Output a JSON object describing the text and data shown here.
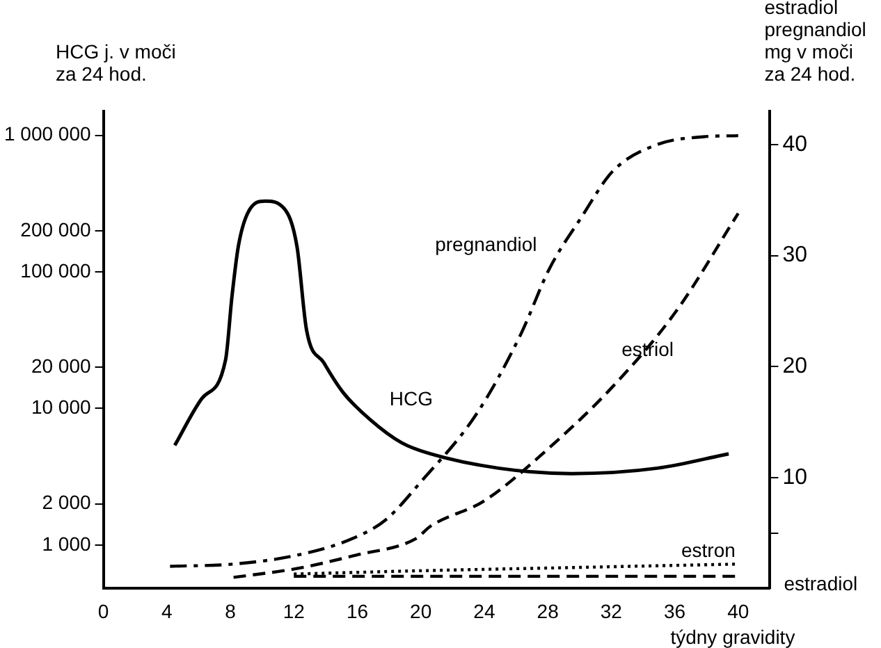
{
  "chart_data": {
    "type": "line",
    "xlabel": "týdny gravidity",
    "ylabel": "HCG j. v moči\nza 24 hod.",
    "y2label": "estradiol\npregnandiol\nmg v moči\nza 24 hod.",
    "xlim": [
      0,
      42
    ],
    "xticks": [
      0,
      4,
      8,
      12,
      16,
      20,
      24,
      28,
      32,
      36,
      40
    ],
    "log": "y",
    "ylim": [
      480,
      1500000
    ],
    "yticks": [
      {
        "value": 1000,
        "label": "1 000"
      },
      {
        "value": 2000,
        "label": "2 000"
      },
      {
        "value": 10000,
        "label": "10 000"
      },
      {
        "value": 20000,
        "label": "20 000"
      },
      {
        "value": 100000,
        "label": "100 000"
      },
      {
        "value": 200000,
        "label": "200 000"
      },
      {
        "value": 1000000,
        "label": "1 000 000"
      }
    ],
    "y2lim": [
      0,
      43
    ],
    "y2ticks": [
      {
        "value": 5,
        "label": null
      },
      10,
      20,
      30,
      40
    ],
    "grid": false,
    "legend": false,
    "marker": "none",
    "series": [
      {
        "name": "HCG",
        "color": "#000000",
        "line_style": "solid",
        "x": [
          4.5,
          6.2,
          7.7,
          8.1,
          8.5,
          9.1,
          10.2,
          11.4,
          12.2,
          12.8,
          13.9,
          15.1,
          16.8,
          18.8,
          20.6,
          24.9,
          29.5,
          34.9,
          39.4
        ],
        "values": [
          5370,
          11800,
          22700,
          65700,
          153000,
          270000,
          330000,
          290000,
          153000,
          37600,
          21500,
          13100,
          8300,
          5600,
          4650,
          3650,
          3330,
          3650,
          4650
        ]
      },
      {
        "name": "pregnandiol",
        "color": "#000000",
        "axis": "y2",
        "line_style": "dashdot",
        "x": [
          4.2,
          8.2,
          12.2,
          15.7,
          17.8,
          20,
          23.5,
          26.3,
          28.1,
          30.1,
          32.1,
          34.9,
          37.8,
          40
        ],
        "values": [
          2.0,
          2.2,
          3.0,
          4.5,
          6.2,
          9.6,
          15.7,
          22.9,
          28.8,
          33.4,
          37.6,
          40,
          40.7,
          40.8
        ]
      },
      {
        "name": "estriol",
        "color": "#000000",
        "axis": "y2",
        "line_style": "dashed",
        "x": [
          8.2,
          12.2,
          15.9,
          19.7,
          20.6,
          24,
          27.8,
          32.1,
          36.1,
          40
        ],
        "values": [
          1.0,
          1.8,
          3.0,
          4.5,
          5.6,
          7.9,
          12.3,
          18.2,
          25,
          33.8
        ]
      },
      {
        "name": "estron",
        "color": "#000000",
        "axis": "y2",
        "line_style": "dotted",
        "x": [
          12,
          20,
          30,
          40
        ],
        "values": [
          1.3,
          1.6,
          1.9,
          2.2
        ]
      },
      {
        "name": "estradiol",
        "color": "#000000",
        "axis": "y2",
        "line_style": "dashed",
        "x": [
          12,
          40
        ],
        "values": [
          1.1,
          1.1
        ]
      }
    ]
  }
}
